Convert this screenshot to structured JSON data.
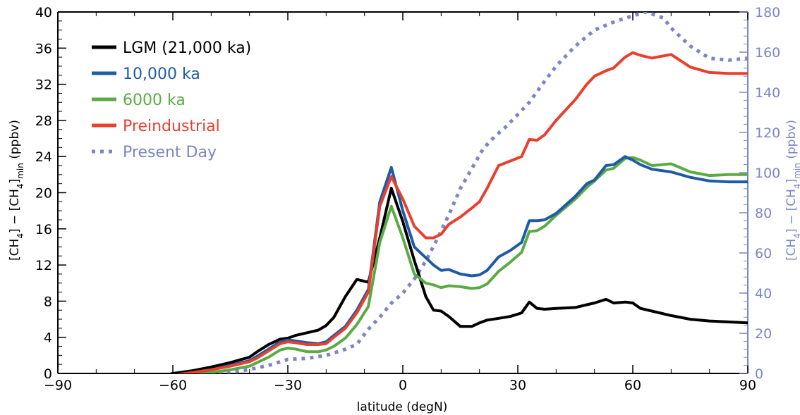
{
  "chart_data": {
    "type": "line",
    "title": "",
    "xlabel": "latitude (degN)",
    "ylabel_left": {
      "main": "[CH",
      "sub1": "4",
      "mid": "] − [CH",
      "sub2": "4",
      "sub3": "min",
      "unit": " (ppbv)"
    },
    "ylabel_right": {
      "main": "[CH",
      "sub1": "4",
      "mid": "] − [CH",
      "sub2": "4",
      "sub3": "min",
      "unit": " (ppbv)"
    },
    "xlim": [
      -90,
      90
    ],
    "ylim_left": [
      0,
      40
    ],
    "ylim_right": [
      0,
      180
    ],
    "x_ticks": [
      "-90",
      "-60",
      "-30",
      "0",
      "30",
      "60",
      "90"
    ],
    "y_ticks_left": [
      "0",
      "4",
      "8",
      "12",
      "16",
      "20",
      "24",
      "28",
      "32",
      "36",
      "40"
    ],
    "y_ticks_right": [
      "0",
      "20",
      "40",
      "60",
      "80",
      "100",
      "120",
      "140",
      "160",
      "180"
    ],
    "right_axis_color": "#7b86c3",
    "legend_position": "top-left",
    "series": [
      {
        "name": "LGM (21,000 ka)",
        "color": "#000000",
        "axis": "left",
        "dash": "solid",
        "x": [
          -90,
          -80,
          -70,
          -65,
          -60,
          -55,
          -50,
          -45,
          -40,
          -38,
          -35,
          -32,
          -30,
          -28,
          -25,
          -22,
          -20,
          -18,
          -15,
          -12,
          -9,
          -6,
          -3,
          0,
          3,
          6,
          8,
          10,
          12,
          15,
          18,
          20,
          22,
          25,
          28,
          31,
          33,
          35,
          37,
          40,
          45,
          48,
          50,
          53,
          55,
          58,
          60,
          62,
          65,
          70,
          75,
          80,
          85,
          90
        ],
        "values": [
          -0.3,
          -0.4,
          -0.5,
          -0.5,
          0.0,
          0.3,
          0.7,
          1.2,
          1.8,
          2.4,
          3.2,
          3.8,
          3.9,
          4.2,
          4.5,
          4.8,
          5.3,
          6.2,
          8.5,
          10.4,
          10.1,
          15.0,
          20.5,
          16.8,
          12.5,
          8.5,
          7.0,
          6.9,
          6.3,
          5.2,
          5.2,
          5.6,
          5.9,
          6.1,
          6.3,
          6.7,
          7.9,
          7.2,
          7.1,
          7.2,
          7.3,
          7.6,
          7.8,
          8.2,
          7.8,
          7.9,
          7.8,
          7.2,
          6.9,
          6.4,
          6.0,
          5.8,
          5.7,
          5.6
        ]
      },
      {
        "name": "10,000 ka",
        "color": "#1f5aa6",
        "axis": "left",
        "dash": "solid",
        "x": [
          -90,
          -80,
          -70,
          -65,
          -60,
          -55,
          -50,
          -45,
          -40,
          -38,
          -35,
          -32,
          -30,
          -28,
          -25,
          -22,
          -20,
          -18,
          -15,
          -12,
          -9,
          -6,
          -3,
          0,
          3,
          6,
          8,
          10,
          12,
          15,
          18,
          20,
          22,
          25,
          28,
          31,
          33,
          35,
          37,
          40,
          45,
          48,
          50,
          53,
          55,
          58,
          60,
          62,
          65,
          70,
          75,
          80,
          85,
          90
        ],
        "values": [
          -0.3,
          -0.4,
          -0.5,
          -0.5,
          -0.2,
          0.1,
          0.4,
          0.9,
          1.4,
          1.9,
          2.7,
          3.5,
          3.7,
          3.6,
          3.4,
          3.3,
          3.5,
          4.2,
          5.2,
          7.0,
          9.3,
          19.0,
          22.8,
          18.0,
          14.0,
          12.8,
          12.0,
          11.4,
          11.5,
          11.0,
          10.8,
          10.9,
          11.4,
          12.9,
          13.6,
          14.5,
          16.9,
          16.9,
          17.0,
          17.7,
          19.6,
          21.0,
          21.4,
          23.0,
          23.1,
          24.0,
          23.6,
          23.1,
          22.6,
          22.3,
          21.7,
          21.3,
          21.2,
          21.2
        ]
      },
      {
        "name": "6000 ka",
        "color": "#5aab45",
        "axis": "left",
        "dash": "solid",
        "x": [
          -90,
          -80,
          -70,
          -65,
          -60,
          -55,
          -50,
          -45,
          -40,
          -38,
          -35,
          -32,
          -30,
          -28,
          -25,
          -22,
          -20,
          -18,
          -15,
          -12,
          -9,
          -6,
          -3,
          0,
          3,
          6,
          8,
          10,
          12,
          15,
          18,
          20,
          22,
          25,
          28,
          31,
          33,
          35,
          37,
          40,
          45,
          48,
          50,
          53,
          55,
          58,
          60,
          62,
          65,
          70,
          75,
          80,
          85,
          90
        ],
        "values": [
          -0.3,
          -0.4,
          -0.5,
          -0.5,
          -0.3,
          -0.1,
          0.1,
          0.4,
          0.8,
          1.2,
          1.8,
          2.6,
          2.8,
          2.7,
          2.4,
          2.4,
          2.6,
          3.0,
          3.9,
          5.4,
          7.4,
          14.5,
          18.5,
          15.0,
          11.0,
          10.0,
          9.8,
          9.5,
          9.7,
          9.6,
          9.4,
          9.5,
          9.9,
          11.3,
          12.3,
          13.4,
          15.7,
          15.8,
          16.3,
          17.5,
          19.3,
          20.6,
          21.3,
          22.5,
          22.7,
          23.8,
          23.9,
          23.6,
          23.0,
          23.2,
          22.3,
          21.9,
          22.0,
          22.0
        ]
      },
      {
        "name": "Preindustrial",
        "color": "#e8402f",
        "axis": "left",
        "dash": "solid",
        "x": [
          -90,
          -80,
          -70,
          -65,
          -60,
          -55,
          -50,
          -45,
          -40,
          -38,
          -35,
          -32,
          -30,
          -28,
          -25,
          -22,
          -20,
          -18,
          -15,
          -12,
          -9,
          -6,
          -3,
          0,
          3,
          6,
          8,
          10,
          12,
          15,
          18,
          20,
          22,
          25,
          28,
          31,
          33,
          35,
          37,
          40,
          45,
          48,
          50,
          53,
          55,
          58,
          60,
          62,
          65,
          70,
          75,
          80,
          85,
          90
        ],
        "values": [
          -0.3,
          -0.4,
          -0.5,
          -0.5,
          -0.2,
          0.1,
          0.4,
          0.8,
          1.3,
          1.7,
          2.5,
          3.3,
          3.5,
          3.4,
          3.2,
          3.2,
          3.3,
          4.0,
          5.0,
          6.7,
          9.0,
          18.5,
          21.8,
          19.3,
          16.3,
          15.0,
          15.0,
          15.4,
          16.5,
          17.3,
          18.3,
          19.0,
          20.5,
          23.0,
          23.5,
          24.0,
          25.9,
          25.8,
          26.4,
          28.0,
          30.3,
          32.0,
          32.9,
          33.5,
          33.8,
          35.0,
          35.5,
          35.2,
          34.9,
          35.3,
          33.9,
          33.3,
          33.2,
          33.2
        ]
      },
      {
        "name": "Present Day",
        "color": "#7b86c3",
        "axis": "right",
        "dash": "dotted",
        "x": [
          -90,
          -80,
          -70,
          -65,
          -60,
          -55,
          -50,
          -45,
          -40,
          -35,
          -30,
          -25,
          -20,
          -15,
          -12,
          -9,
          -6,
          -3,
          0,
          3,
          6,
          9,
          12,
          15,
          18,
          21,
          24,
          27,
          30,
          33,
          36,
          40,
          45,
          50,
          55,
          58,
          60,
          63,
          65,
          68,
          70,
          75,
          80,
          85,
          90
        ],
        "values": [
          -1.5,
          -1.8,
          -2.0,
          -2.0,
          -1.5,
          -1.0,
          -0.5,
          0.5,
          2.0,
          4.0,
          7.0,
          7.5,
          9.0,
          12.0,
          14.5,
          22.0,
          28.0,
          35.0,
          40.0,
          47.0,
          56.0,
          67.0,
          79.0,
          92.0,
          102.0,
          112.0,
          118.0,
          123.0,
          129.0,
          135.0,
          143.0,
          153.0,
          163.0,
          171.0,
          175.0,
          177.0,
          178.0,
          180.0,
          179.0,
          177.0,
          172.0,
          163.0,
          157.0,
          156.0,
          157.0
        ]
      }
    ]
  }
}
